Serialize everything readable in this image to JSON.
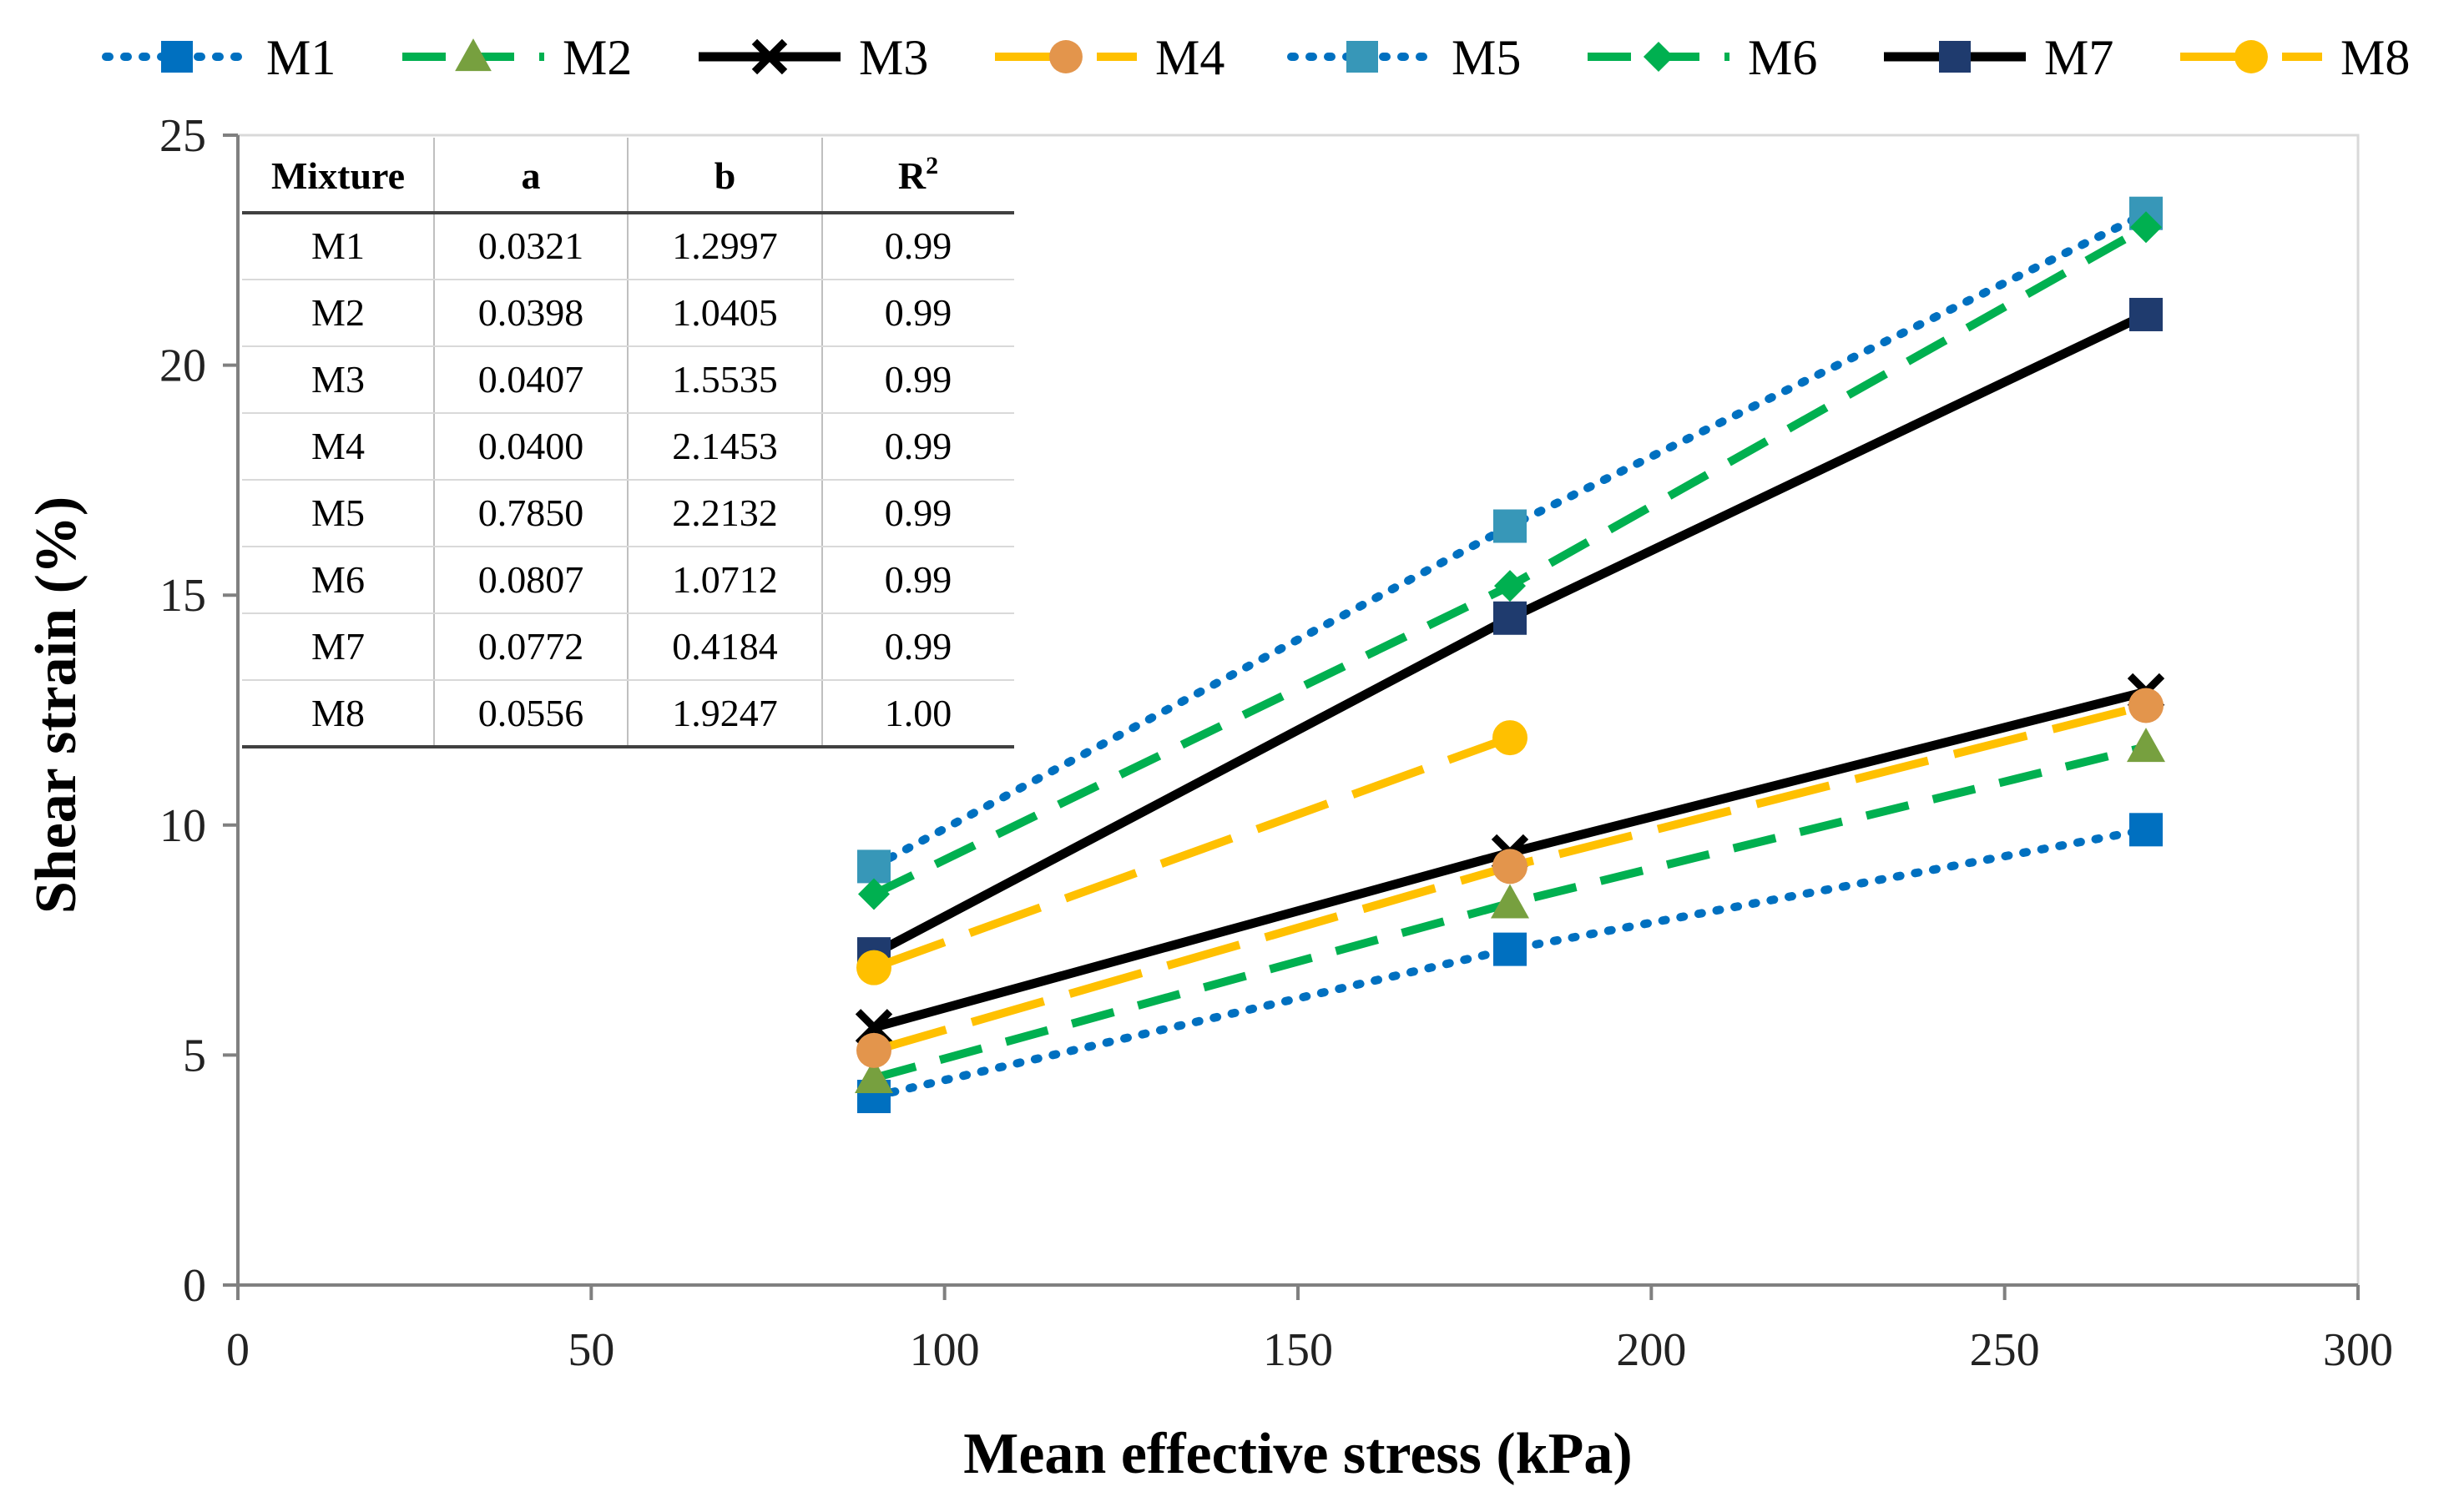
{
  "chart_data": {
    "type": "line",
    "xlabel": "Mean effective stress (kPa)",
    "ylabel": "Shear strain (%)",
    "xlim": [
      0,
      300
    ],
    "ylim": [
      0,
      25
    ],
    "xticks": [
      0,
      50,
      100,
      150,
      200,
      250,
      300
    ],
    "yticks": [
      0,
      5,
      10,
      15,
      20,
      25
    ],
    "grid": false,
    "legend_position": "top",
    "series": [
      {
        "name": "M1",
        "color": "#0070C0",
        "dash": "dotted",
        "marker": "square",
        "x": [
          90,
          180,
          270
        ],
        "y": [
          4.1,
          7.3,
          9.9
        ]
      },
      {
        "name": "M2",
        "color": "#00B050",
        "dash": "dashed",
        "marker": "triangle",
        "x": [
          90,
          180,
          270
        ],
        "y": [
          4.5,
          8.3,
          11.7
        ]
      },
      {
        "name": "M3",
        "color": "#000000",
        "dash": "solid",
        "marker": "x",
        "x": [
          90,
          180,
          270
        ],
        "y": [
          5.6,
          9.4,
          12.9
        ]
      },
      {
        "name": "M4",
        "color": "#FFC000",
        "dash": "longdash",
        "marker": "circle",
        "x": [
          90,
          180,
          270
        ],
        "y": [
          5.1,
          9.1,
          12.6
        ]
      },
      {
        "name": "M5",
        "color": "#0070C0",
        "dash": "dotted",
        "marker": "square",
        "x": [
          90,
          180,
          270
        ],
        "y": [
          9.1,
          16.5,
          23.3
        ]
      },
      {
        "name": "M6",
        "color": "#00B050",
        "dash": "dashed",
        "marker": "diamond",
        "x": [
          90,
          180,
          270
        ],
        "y": [
          8.5,
          15.2,
          23.0
        ]
      },
      {
        "name": "M7",
        "color": "#000000",
        "dash": "solid",
        "marker": "square",
        "x": [
          90,
          180,
          270
        ],
        "y": [
          7.2,
          14.5,
          21.1
        ]
      },
      {
        "name": "M8",
        "color": "#FFC000",
        "dash": "longdash",
        "marker": "circle",
        "x": [
          90,
          180
        ],
        "y": [
          6.9,
          11.9
        ]
      }
    ],
    "marker_colors": {
      "M1": "#0070C0",
      "M2": "#77A03F",
      "M3": "#000000",
      "M4": "#E3954C",
      "M5": "#3797B8",
      "M6": "#00B050",
      "M7": "#1F3B6E",
      "M8": "#FFC000"
    },
    "table": {
      "headers": [
        "Mixture",
        "a",
        "b",
        "R2"
      ],
      "rows": [
        [
          "M1",
          "0.0321",
          "1.2997",
          "0.99"
        ],
        [
          "M2",
          "0.0398",
          "1.0405",
          "0.99"
        ],
        [
          "M3",
          "0.0407",
          "1.5535",
          "0.99"
        ],
        [
          "M4",
          "0.0400",
          "2.1453",
          "0.99"
        ],
        [
          "M5",
          "0.7850",
          "2.2132",
          "0.99"
        ],
        [
          "M6",
          "0.0807",
          "1.0712",
          "0.99"
        ],
        [
          "M7",
          "0.0772",
          "0.4184",
          "0.99"
        ],
        [
          "M8",
          "0.0556",
          "1.9247",
          "1.00"
        ]
      ]
    }
  }
}
